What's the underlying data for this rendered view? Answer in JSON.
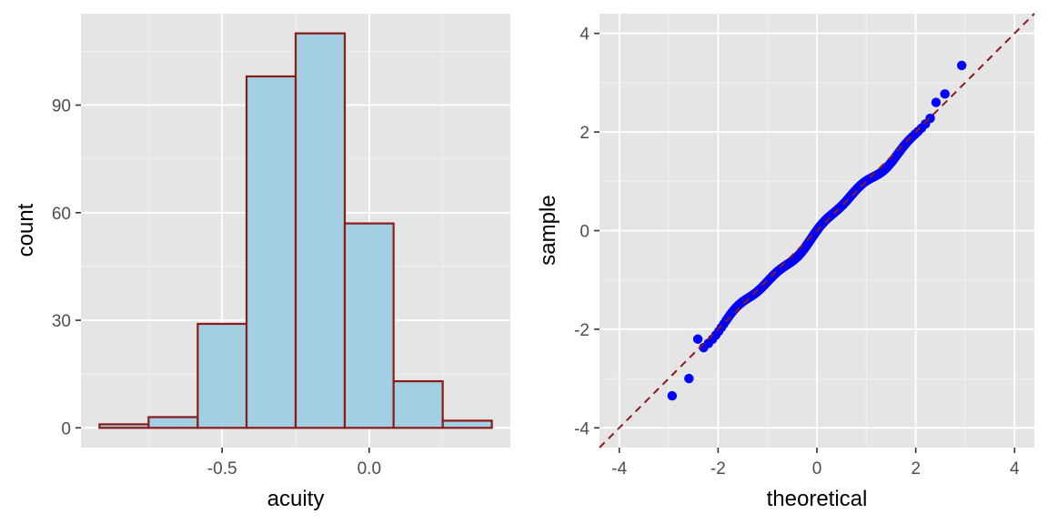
{
  "chart_data": [
    {
      "type": "bar",
      "subtype": "histogram",
      "xlabel": "acuity",
      "ylabel": "count",
      "bins": [
        {
          "x0": -0.917,
          "x1": -0.75,
          "count": 1
        },
        {
          "x0": -0.75,
          "x1": -0.583,
          "count": 3
        },
        {
          "x0": -0.583,
          "x1": -0.417,
          "count": 29
        },
        {
          "x0": -0.417,
          "x1": -0.25,
          "count": 98
        },
        {
          "x0": -0.25,
          "x1": -0.083,
          "count": 110
        },
        {
          "x0": -0.083,
          "x1": 0.083,
          "count": 57
        },
        {
          "x0": 0.083,
          "x1": 0.25,
          "count": 13
        },
        {
          "x0": 0.25,
          "x1": 0.417,
          "count": 2
        }
      ],
      "xlim": [
        -0.98,
        0.48
      ],
      "ylim": [
        -5.5,
        115.5
      ],
      "xticks": [
        -0.5,
        0.0
      ],
      "xtick_labels": [
        "-0.5",
        "0.0"
      ],
      "yticks": [
        0,
        30,
        60,
        90
      ],
      "ytick_labels": [
        "0",
        "30",
        "60",
        "90"
      ],
      "fill_color": "#a2d0e2",
      "outline_color": "#8b1a1a",
      "panel_bg": "#e5e5e5",
      "grid": true
    },
    {
      "type": "scatter",
      "subtype": "qq",
      "xlabel": "theoretical",
      "ylabel": "sample",
      "xlim": [
        -4.4,
        4.4
      ],
      "ylim": [
        -4.4,
        4.4
      ],
      "xticks": [
        -4,
        -2,
        0,
        2,
        4
      ],
      "xtick_labels": [
        "-4",
        "-2",
        "0",
        "2",
        "4"
      ],
      "yticks": [
        -4,
        -2,
        0,
        2,
        4
      ],
      "ytick_labels": [
        "-4",
        "-2",
        "0",
        "2",
        "4"
      ],
      "point_color": "#0000ff",
      "line_color": "#8b1a1a",
      "reference_line": {
        "intercept": 0,
        "slope": 1,
        "style": "dashed"
      },
      "tail_points": [
        {
          "x": -2.93,
          "y": -3.35
        },
        {
          "x": -2.59,
          "y": -3.0
        },
        {
          "x": -2.41,
          "y": -2.2
        },
        {
          "x": 2.41,
          "y": 2.6
        },
        {
          "x": 2.59,
          "y": 2.77
        },
        {
          "x": 2.93,
          "y": 3.35
        }
      ],
      "body_points": {
        "n": 313,
        "z_range": [
          -2.3,
          2.3
        ]
      },
      "panel_bg": "#e5e5e5",
      "grid": true
    }
  ]
}
